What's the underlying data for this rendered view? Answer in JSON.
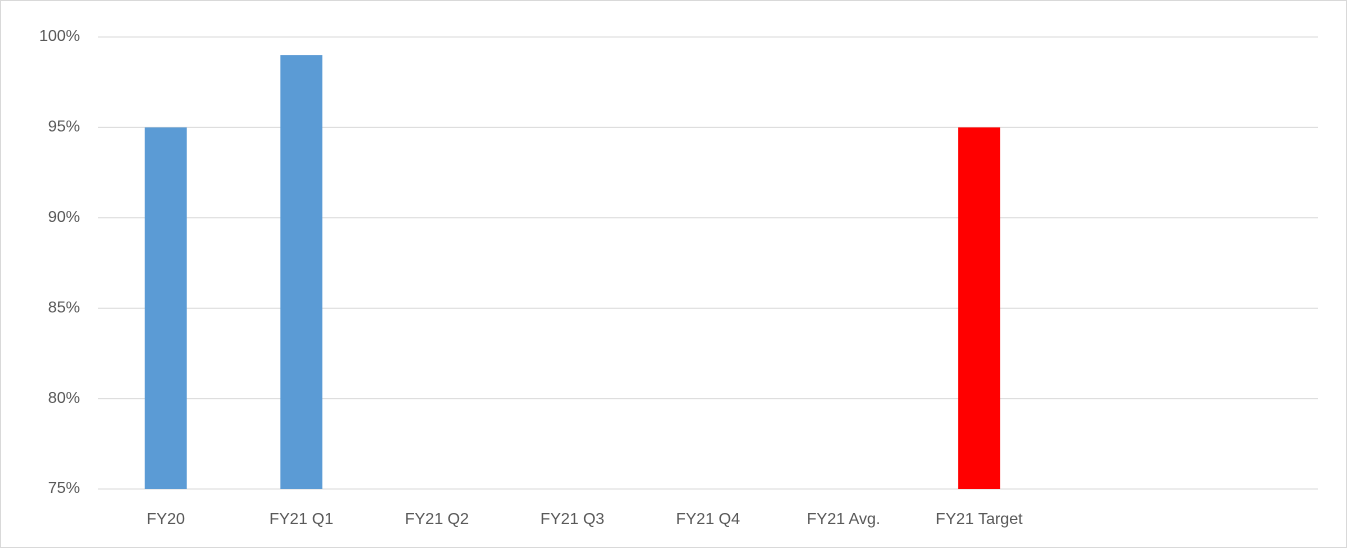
{
  "chart_data": {
    "type": "bar",
    "categories": [
      "FY20",
      "FY21 Q1",
      "FY21 Q2",
      "FY21 Q3",
      "FY21 Q4",
      "FY21 Avg.",
      "FY21 Target",
      null,
      null
    ],
    "values": [
      95,
      99,
      null,
      null,
      null,
      null,
      95,
      null,
      null
    ],
    "colors": [
      "#5b9bd5",
      "#5b9bd5",
      "#5b9bd5",
      "#5b9bd5",
      "#5b9bd5",
      "#5b9bd5",
      "#ff0000",
      "#5b9bd5",
      "#5b9bd5"
    ],
    "ylim": [
      75,
      100
    ],
    "yticks": [
      {
        "value": 75,
        "label": "75%"
      },
      {
        "value": 80,
        "label": "80%"
      },
      {
        "value": 85,
        "label": "85%"
      },
      {
        "value": 90,
        "label": "90%"
      },
      {
        "value": 95,
        "label": "95%"
      },
      {
        "value": 100,
        "label": "100%"
      }
    ],
    "grid": true
  }
}
